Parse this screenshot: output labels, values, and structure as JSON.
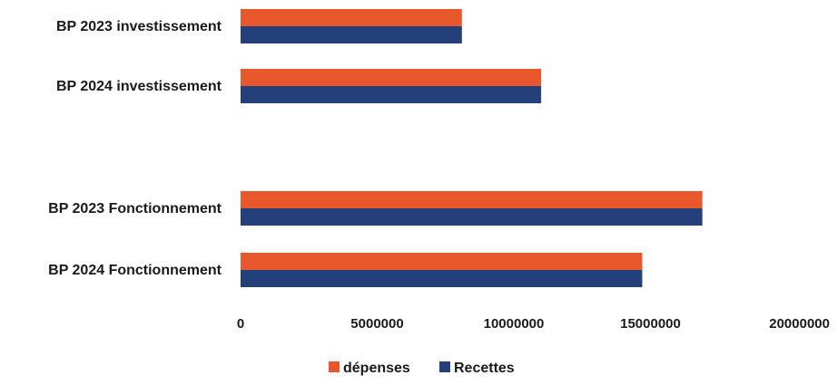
{
  "chart_data": {
    "type": "bar",
    "orientation": "horizontal",
    "categories": [
      "BP 2023 investissement",
      "BP 2024 investissement",
      "BP 2023 Fonctionnement",
      "BP 2024 Fonctionnement"
    ],
    "series": [
      {
        "name": "dépenses",
        "color": "#e8582c",
        "values": [
          8100000,
          11000000,
          16900000,
          14700000
        ]
      },
      {
        "name": "Recettes",
        "color": "#23407a",
        "values": [
          8100000,
          11000000,
          16900000,
          14700000
        ]
      }
    ],
    "x_ticks": [
      "0",
      "5000000",
      "10000000",
      "15000000",
      "20000000"
    ],
    "xlim": [
      0,
      20000000
    ],
    "grid": false,
    "legend_position": "bottom"
  }
}
